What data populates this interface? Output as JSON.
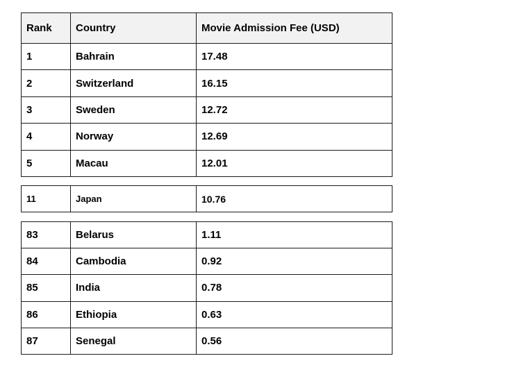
{
  "headers": [
    "Rank",
    "Country",
    "Movie Admission Fee (USD)"
  ],
  "top_rows": [
    {
      "rank": "1",
      "country": "Bahrain",
      "fee": "17.48"
    },
    {
      "rank": "2",
      "country": "Switzerland",
      "fee": "16.15"
    },
    {
      "rank": "3",
      "country": "Sweden",
      "fee": "12.72"
    },
    {
      "rank": "4",
      "country": "Norway",
      "fee": "12.69"
    },
    {
      "rank": "5",
      "country": "Macau",
      "fee": "12.01"
    }
  ],
  "middle_rows": [
    {
      "rank": "11",
      "country": "Japan",
      "fee": "10.76"
    }
  ],
  "bottom_rows": [
    {
      "rank": "83",
      "country": "Belarus",
      "fee": "1.11"
    },
    {
      "rank": "84",
      "country": "Cambodia",
      "fee": "0.92"
    },
    {
      "rank": "85",
      "country": "India",
      "fee": "0.78"
    },
    {
      "rank": "86",
      "country": "Ethiopia",
      "fee": "0.63"
    },
    {
      "rank": "87",
      "country": "Senegal",
      "fee": "0.56"
    }
  ]
}
